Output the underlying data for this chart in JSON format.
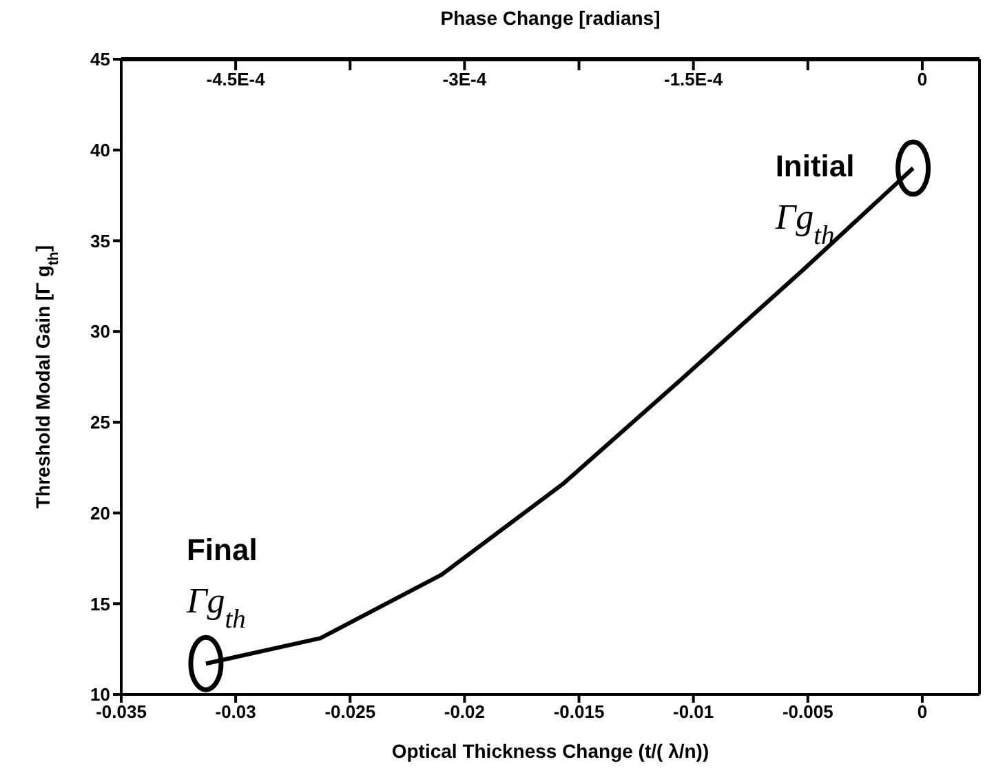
{
  "chart_data": {
    "type": "line",
    "xlabel": "Optical Thickness Change (t/( λ/n))",
    "ylabel": "Threshold Modal Gain [Γ g$_{th}$]",
    "x2label": "Phase Change [radians]",
    "x": [
      -0.0313,
      -0.0263,
      -0.021,
      -0.0157,
      -0.0105,
      -0.0052,
      -0.0004
    ],
    "series": [
      {
        "color": "#000000",
        "values": [
          11.7,
          13.1,
          16.6,
          21.6,
          27.4,
          33.4,
          39.0
        ]
      }
    ],
    "xlim": [
      -0.035,
      0.0025
    ],
    "xticks": [
      -0.035,
      -0.03,
      -0.025,
      -0.02,
      -0.015,
      -0.01,
      -0.005,
      0
    ],
    "x2lim": [
      -0.000525,
      3.75e-05
    ],
    "x2ticks": [
      {
        "value": -0.00045,
        "label": "-4.5E-4"
      },
      {
        "value": -0.000375,
        "label": null
      },
      {
        "value": -0.0003,
        "label": "-3E-4"
      },
      {
        "value": -0.000225,
        "label": null
      },
      {
        "value": -0.00015,
        "label": "-1.5E-4"
      },
      {
        "value": -7.5e-05,
        "label": null
      },
      0
    ],
    "ylim": [
      10,
      45
    ],
    "yticks": [
      10,
      15,
      20,
      25,
      30,
      35,
      40,
      45
    ],
    "marker": "none",
    "line_style": "solid",
    "annotations": [
      {
        "text": "Final\nΓg$_{th}$",
        "x": -0.0313,
        "y": 11.7
      },
      {
        "text": "Initial\nΓg$_{th}$",
        "x": -0.0004,
        "y": 39.0
      }
    ]
  }
}
